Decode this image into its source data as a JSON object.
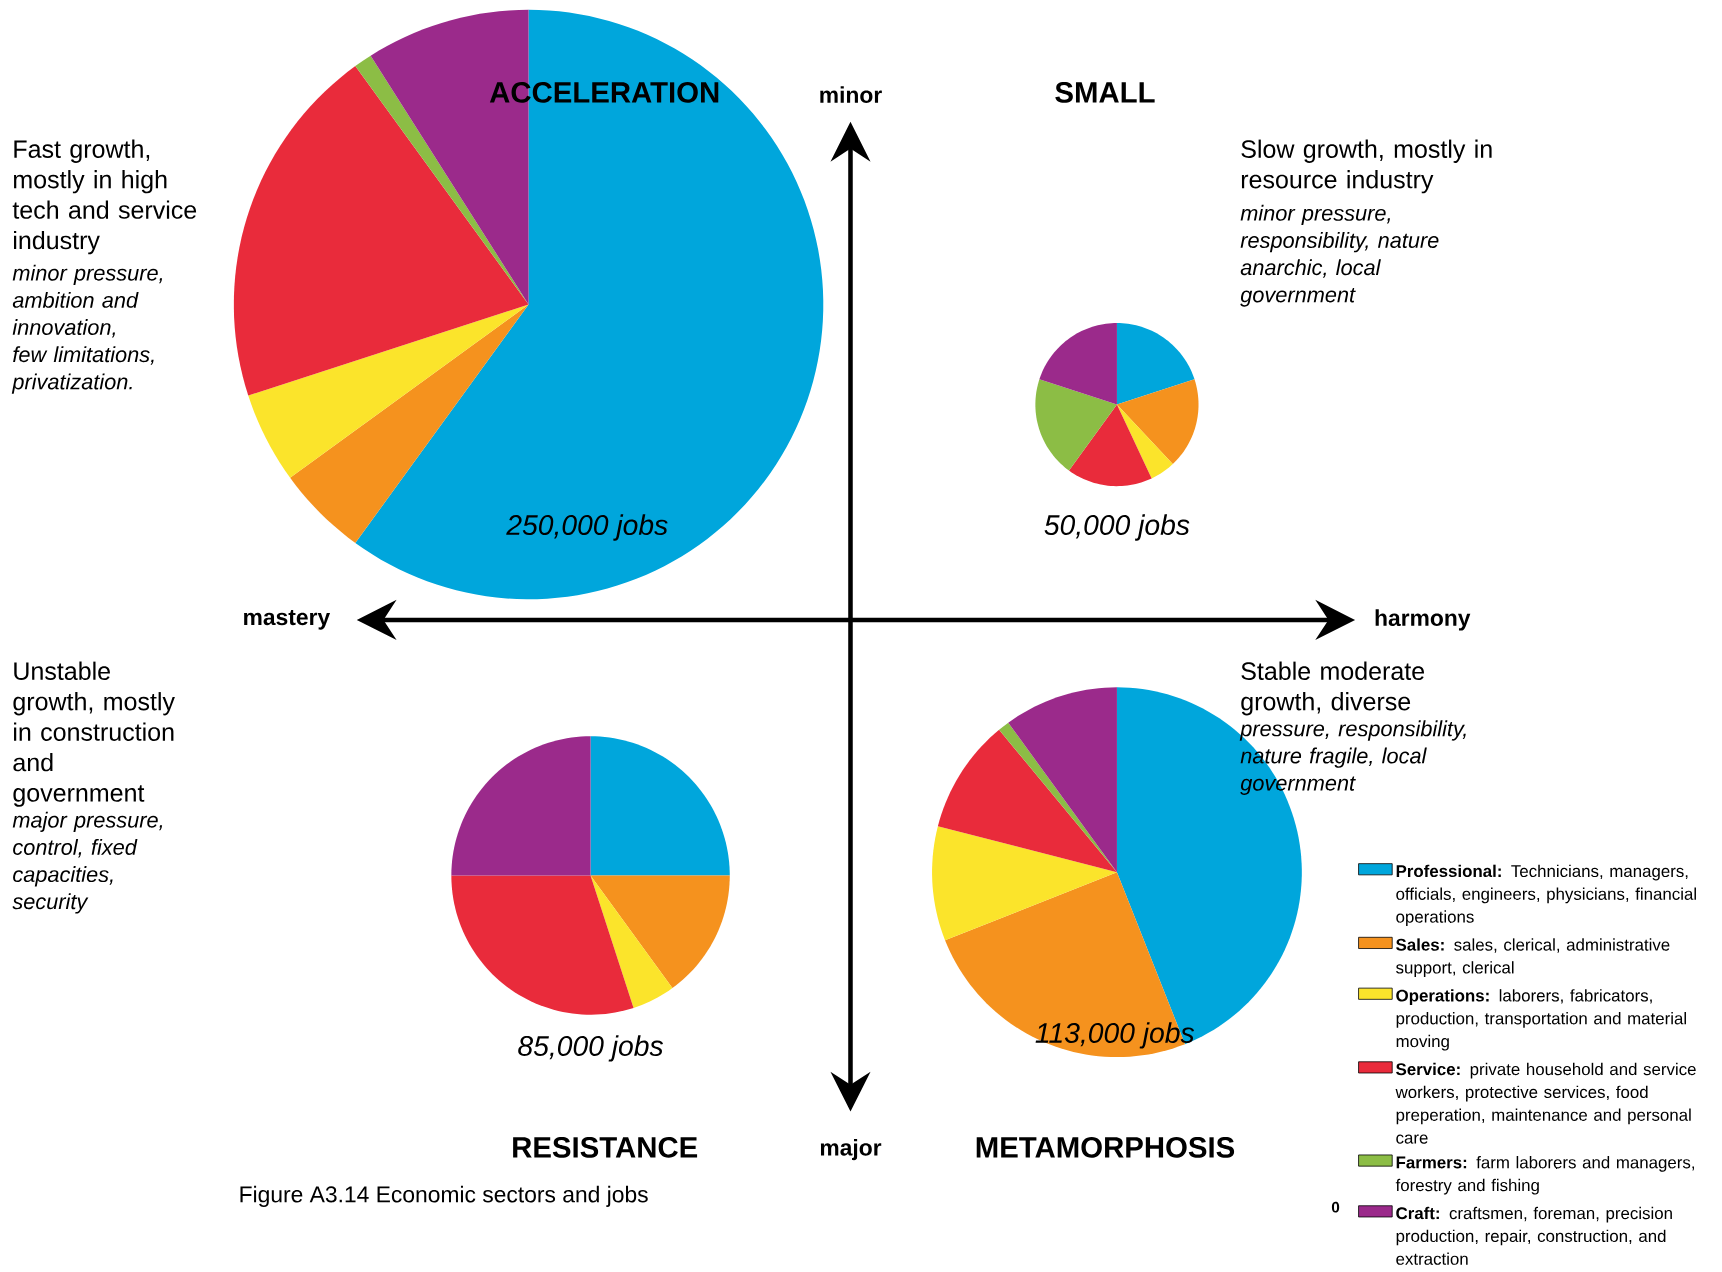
{
  "chart_data": [
    {
      "type": "pie",
      "title": "ACCELERATION",
      "categories": [
        "**Professional:** Technicians, managers, officials, engineers, physicians, financial operations",
        "**Sales:** sales, clerical, administrative support, clerical",
        "**Operations:** laborers, fabricators, production, transportation and material moving",
        "**Service:** private household and service workers, protective services, food preperation, maintenance and personal care",
        "**Farmers:** farm laborers and managers, forestry and fishing",
        "**Craft:** craftsmen, foreman, precision production, repair, construction, and extraction"
      ],
      "values": [
        60,
        5,
        5,
        20,
        1,
        9
      ],
      "colors": [
        "#00a6dc",
        "#f5921e",
        "#fbe42b",
        "#e92b3b",
        "#8cbd45",
        "#9b2a8b"
      ],
      "legend": "bottom right",
      "annotations": [
        "250,000 jobs",
        "Fast growth, mostly in high tech and service industry",
        "minor pressure, ambition and innovation, few limitations, privatization."
      ]
    },
    {
      "type": "pie",
      "title": "SMALL",
      "categories": [
        null,
        null,
        null,
        null,
        null,
        null
      ],
      "values": [
        20,
        18,
        5,
        17,
        20,
        20
      ],
      "colors": [
        "#00a6dc",
        "#f5921e",
        "#fbe42b",
        "#e92b3b",
        "#8cbd45",
        "#9b2a8b"
      ],
      "annotations": [
        "50,000 jobs",
        "Slow growth, mostly in resource industry",
        "minor pressure, responsibility, nature anarchic, local government"
      ]
    },
    {
      "type": "pie",
      "title": "RESISTANCE",
      "categories": [
        null,
        null,
        null,
        null,
        null,
        null
      ],
      "values": [
        25,
        15,
        5,
        30,
        0,
        25
      ],
      "colors": [
        "#00a6dc",
        "#f5921e",
        "#fbe42b",
        "#e92b3b",
        "#8cbd45",
        "#9b2a8b"
      ],
      "annotations": [
        "85,000 jobs",
        "Unstable growth, mostly in construction and government",
        "major pressure, control, fixed capacities, security"
      ]
    },
    {
      "type": "pie",
      "title": "METAMORPHOSIS",
      "categories": [
        null,
        null,
        null,
        null,
        null,
        null
      ],
      "values": [
        44,
        25,
        10,
        10,
        1,
        10
      ],
      "colors": [
        "#00a6dc",
        "#f5921e",
        "#fbe42b",
        "#e92b3b",
        "#8cbd45",
        "#9b2a8b"
      ],
      "annotations": [
        "113,000 jobs",
        "Stable moderate growth, diverse",
        "pressure, responsibility, nature fragile, local government"
      ]
    },
    {
      "type": "other",
      "annotations": [
        "minor",
        "major",
        "mastery",
        "harmony",
        "Figure A3.14 Economic sectors and jobs",
        "0"
      ]
    }
  ]
}
